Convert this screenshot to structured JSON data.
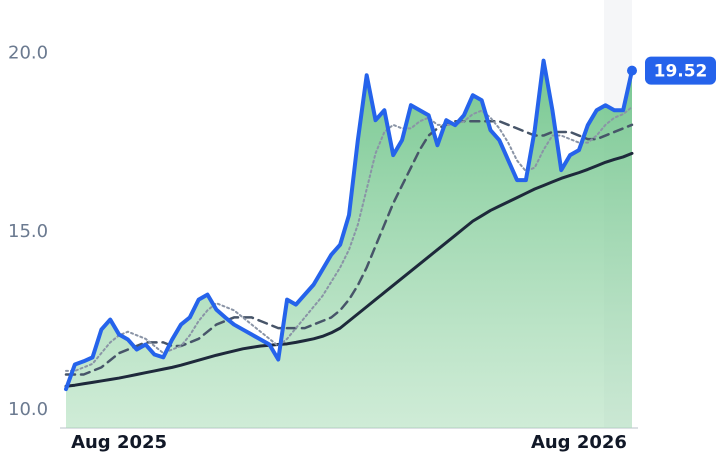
{
  "chart_data": {
    "type": "line",
    "categories": [
      null,
      null,
      null,
      null,
      null,
      null,
      "Aug 2025",
      null,
      null,
      null,
      null,
      null,
      null,
      null,
      null,
      null,
      null,
      null,
      null,
      null,
      null,
      null,
      null,
      null,
      null,
      null,
      null,
      null,
      null,
      null,
      null,
      null,
      null,
      null,
      null,
      null,
      null,
      null,
      null,
      null,
      null,
      null,
      null,
      null,
      null,
      null,
      null,
      null,
      null,
      null,
      null,
      null,
      null,
      null,
      null,
      null,
      null,
      null,
      "Aug 2026",
      null,
      null,
      null,
      null,
      null,
      null
    ],
    "series": [
      {
        "color": "#2563eb",
        "line_style": "solid",
        "width": 4,
        "area": true,
        "last_label": true,
        "values": [
          10.59,
          11.28,
          11.37,
          11.48,
          12.26,
          12.54,
          12.12,
          11.98,
          11.7,
          11.84,
          11.56,
          11.48,
          11.98,
          12.4,
          12.6,
          13.1,
          13.24,
          12.82,
          12.6,
          12.4,
          12.26,
          12.12,
          11.98,
          11.84,
          11.42,
          13.1,
          12.96,
          13.24,
          13.52,
          13.94,
          14.36,
          14.64,
          15.47,
          17.57,
          19.39,
          18.13,
          18.41,
          17.15,
          17.57,
          18.55,
          18.41,
          18.27,
          17.43,
          18.13,
          17.99,
          18.27,
          18.83,
          18.69,
          17.85,
          17.57,
          17.01,
          16.45,
          16.45,
          17.85,
          19.8,
          18.41,
          16.73,
          17.15,
          17.29,
          17.99,
          18.41,
          18.55,
          18.41,
          18.41,
          19.52
        ]
      },
      {
        "color": "#8a94a6",
        "line_style": "dotted",
        "width": 2,
        "values": [
          11.1,
          11.1,
          11.2,
          11.3,
          11.6,
          11.9,
          12.1,
          12.2,
          12.1,
          12.0,
          11.8,
          11.6,
          11.7,
          11.8,
          12.1,
          12.5,
          12.8,
          13.0,
          12.9,
          12.8,
          12.6,
          12.4,
          12.2,
          12.0,
          11.8,
          12.0,
          12.3,
          12.6,
          12.9,
          13.2,
          13.6,
          14.0,
          14.5,
          15.2,
          16.2,
          17.2,
          17.8,
          18.0,
          17.9,
          17.9,
          18.1,
          18.2,
          18.0,
          18.0,
          18.0,
          18.1,
          18.3,
          18.4,
          18.2,
          17.9,
          17.5,
          17.0,
          16.7,
          16.8,
          17.3,
          17.7,
          17.7,
          17.6,
          17.5,
          17.5,
          17.7,
          18.0,
          18.2,
          18.3,
          18.5
        ]
      },
      {
        "color": "#475569",
        "line_style": "dashed",
        "width": 2.5,
        "values": [
          11.0,
          11.0,
          11.0,
          11.1,
          11.2,
          11.4,
          11.6,
          11.7,
          11.8,
          11.9,
          11.9,
          11.9,
          11.8,
          11.8,
          11.9,
          12.0,
          12.2,
          12.4,
          12.5,
          12.6,
          12.6,
          12.6,
          12.5,
          12.4,
          12.3,
          12.3,
          12.3,
          12.3,
          12.4,
          12.5,
          12.6,
          12.8,
          13.1,
          13.5,
          14.0,
          14.6,
          15.2,
          15.8,
          16.3,
          16.8,
          17.3,
          17.7,
          17.9,
          18.0,
          18.1,
          18.1,
          18.1,
          18.1,
          18.1,
          18.1,
          18.0,
          17.9,
          17.8,
          17.7,
          17.7,
          17.8,
          17.8,
          17.8,
          17.7,
          17.6,
          17.6,
          17.7,
          17.8,
          17.9,
          18.0
        ]
      },
      {
        "color": "#1e293b",
        "line_style": "solid",
        "width": 3,
        "values": [
          10.67,
          10.7,
          10.74,
          10.78,
          10.82,
          10.86,
          10.9,
          10.95,
          11.0,
          11.05,
          11.1,
          11.15,
          11.2,
          11.26,
          11.33,
          11.4,
          11.47,
          11.54,
          11.6,
          11.66,
          11.72,
          11.76,
          11.8,
          11.82,
          11.84,
          11.86,
          11.9,
          11.95,
          12.0,
          12.07,
          12.17,
          12.3,
          12.5,
          12.7,
          12.9,
          13.1,
          13.3,
          13.5,
          13.7,
          13.9,
          14.1,
          14.3,
          14.5,
          14.7,
          14.9,
          15.1,
          15.3,
          15.45,
          15.6,
          15.72,
          15.84,
          15.96,
          16.08,
          16.2,
          16.3,
          16.4,
          16.5,
          16.58,
          16.66,
          16.75,
          16.85,
          16.95,
          17.03,
          17.1,
          17.2
        ]
      }
    ],
    "area_color": "#86cf9c",
    "ylim": [
      9.5,
      21.5
    ],
    "yticks": [
      {
        "value": 10,
        "label": "10.0"
      },
      {
        "value": 15,
        "label": "15.0"
      },
      {
        "value": 20,
        "label": "20.0"
      }
    ]
  }
}
